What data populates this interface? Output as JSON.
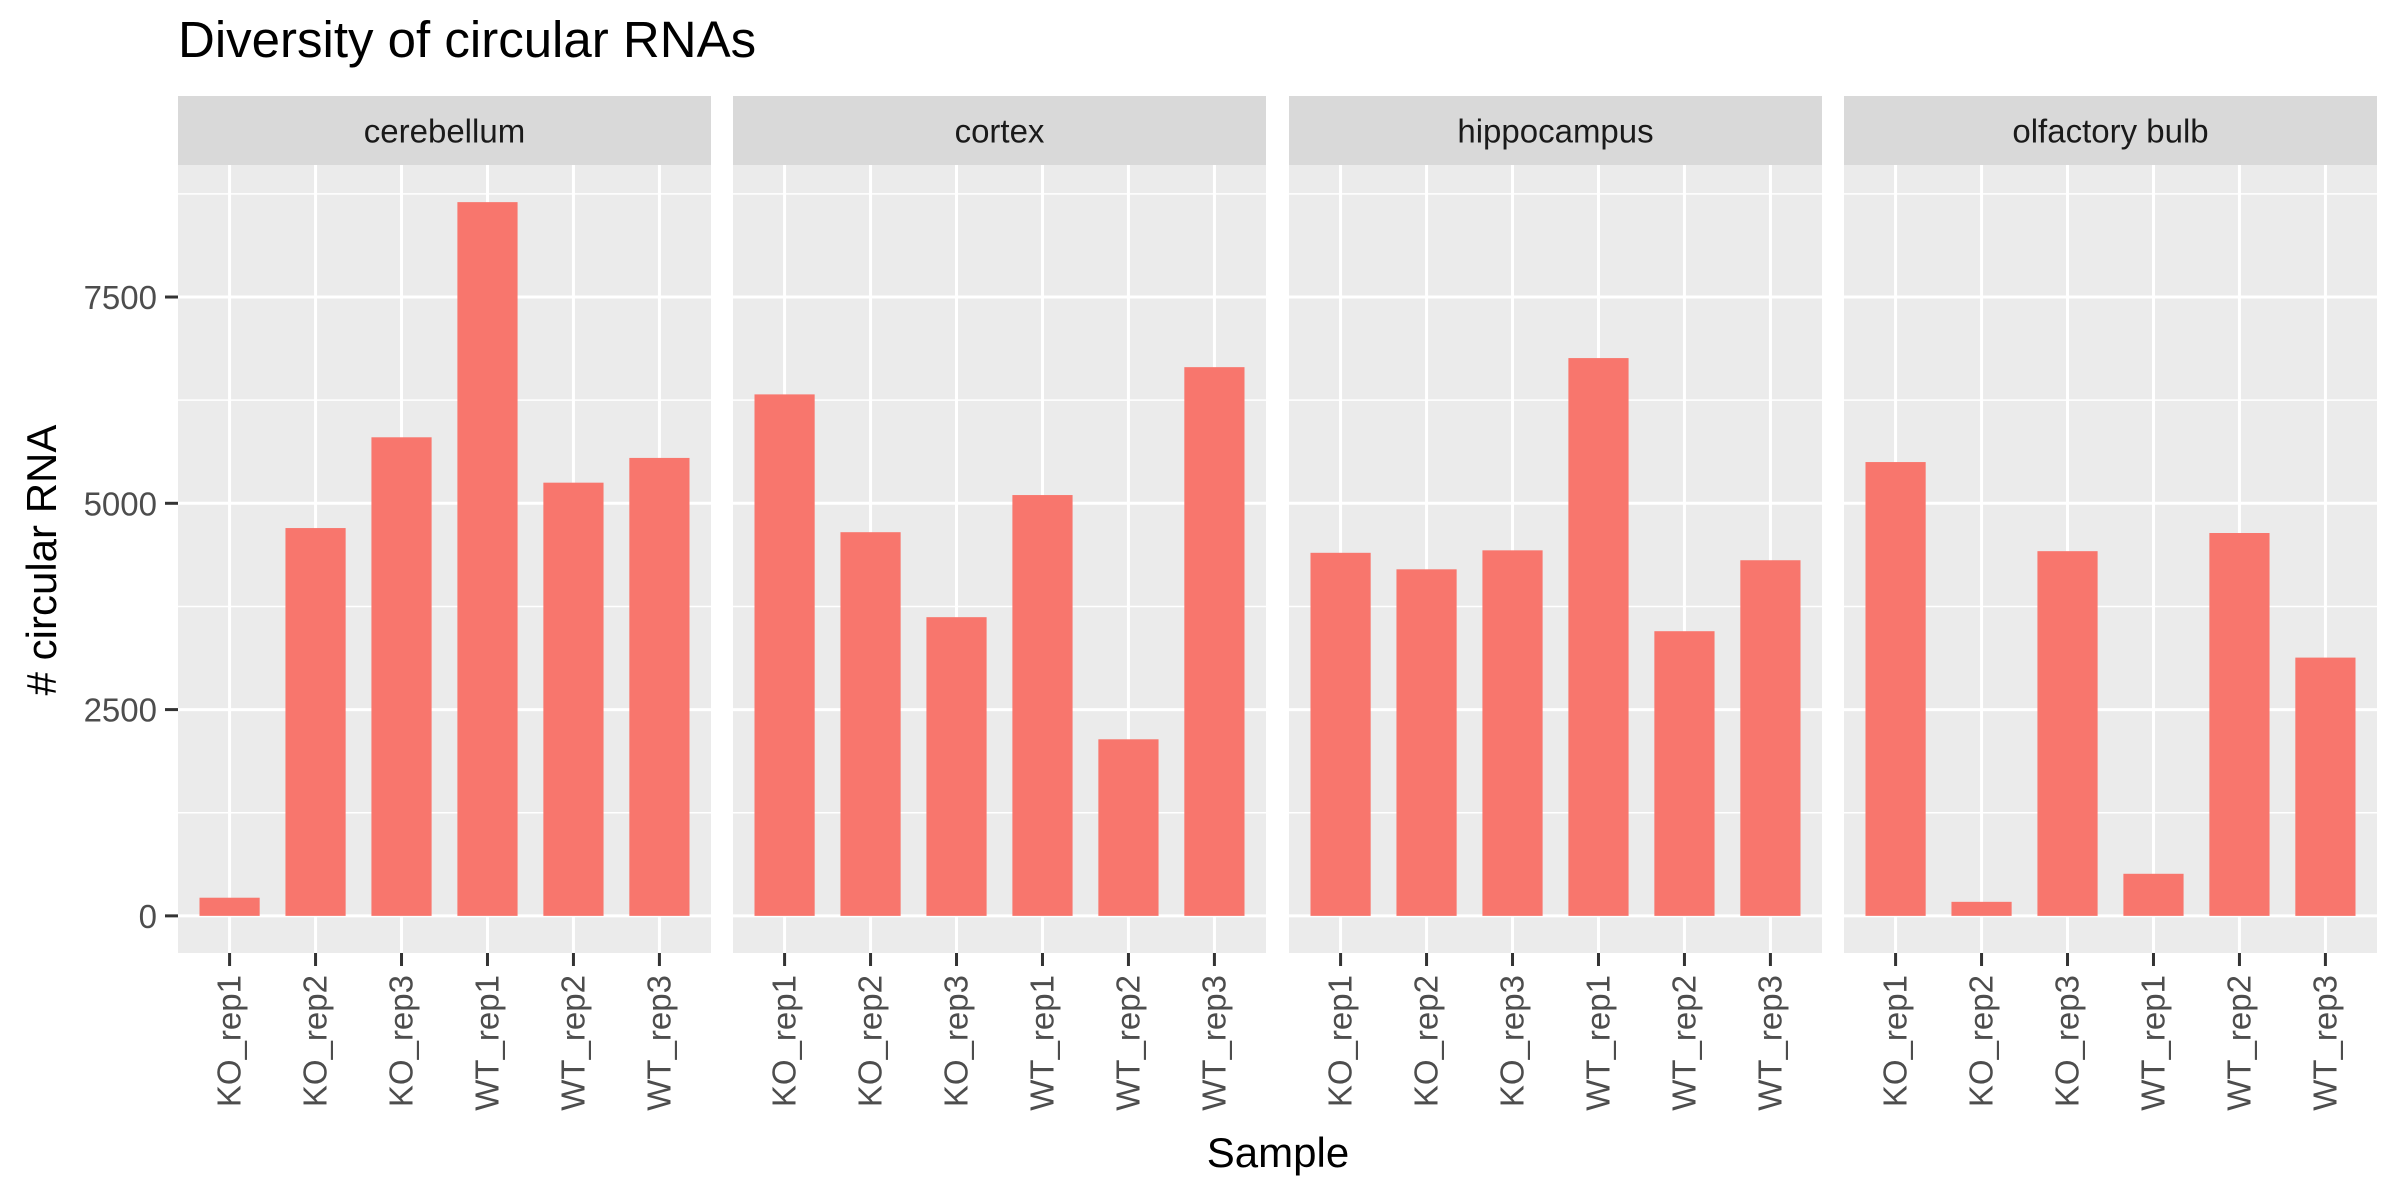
{
  "chart_data": {
    "type": "bar",
    "title": "Diversity of circular RNAs",
    "xlabel": "Sample",
    "ylabel": "# circular RNA",
    "ylim": [
      -450,
      9100
    ],
    "yticks": [
      0,
      2500,
      5000,
      7500
    ],
    "ytick_labels": [
      "0",
      "2500",
      "5000",
      "7500"
    ],
    "categories": [
      "KO_rep1",
      "KO_rep2",
      "KO_rep3",
      "WT_rep1",
      "WT_rep2",
      "WT_rep3"
    ],
    "bar_color": "#f8766d",
    "panel_background": "#ebebeb",
    "strip_background": "#d9d9d9",
    "grid": true,
    "legend": "none",
    "facets": [
      {
        "name": "cerebellum",
        "values": [
          220,
          4700,
          5800,
          8650,
          5250,
          5550
        ]
      },
      {
        "name": "cortex",
        "values": [
          6320,
          4650,
          3620,
          5100,
          2140,
          6650
        ]
      },
      {
        "name": "hippocampus",
        "values": [
          4400,
          4200,
          4430,
          6760,
          3450,
          4310
        ]
      },
      {
        "name": "olfactory bulb",
        "values": [
          5500,
          170,
          4420,
          510,
          4640,
          3130
        ]
      }
    ]
  }
}
